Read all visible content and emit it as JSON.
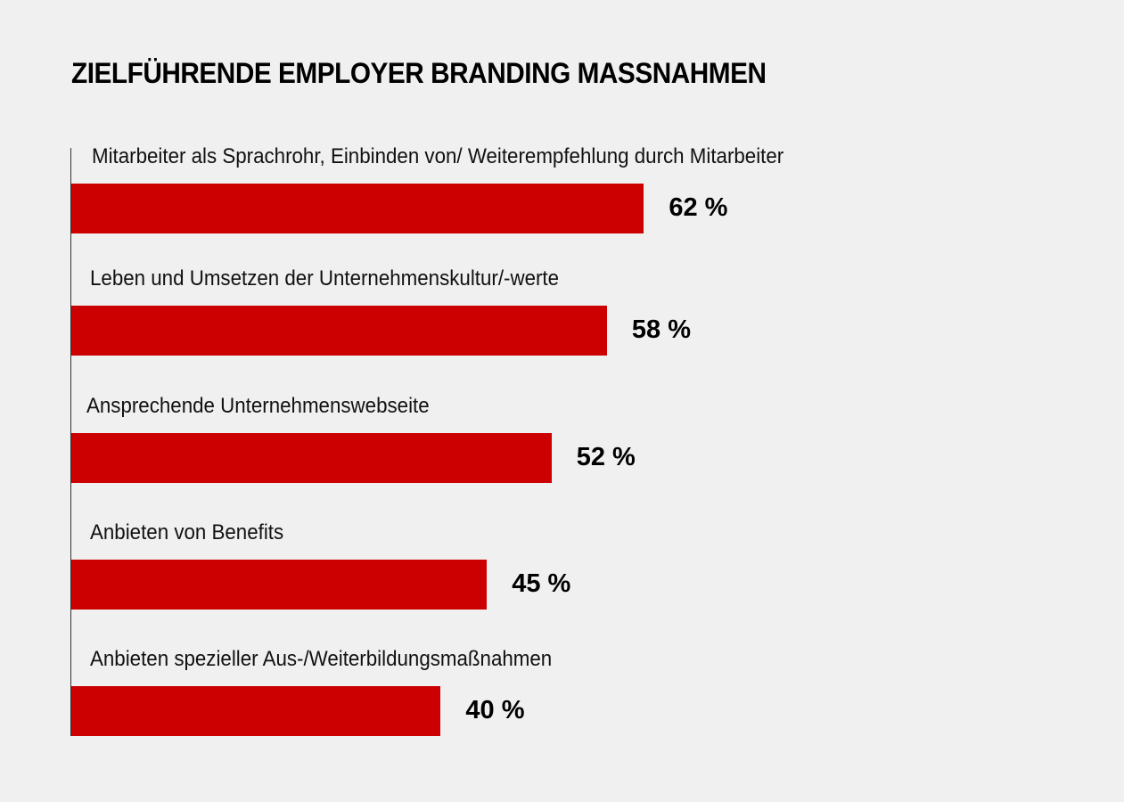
{
  "chart_data": {
    "type": "bar",
    "orientation": "horizontal",
    "title": "ZIELFÜHRENDE EMPLOYER BRANDING MASSNAHMEN",
    "xlabel": "",
    "ylabel": "",
    "categories": [
      "Mitarbeiter als Sprachrohr, Einbinden von/ Weiterempfehlung durch Mitarbeiter",
      "Leben und Umsetzen der Unternehmenskultur/-werte",
      "Ansprechende Unternehmenswebseite",
      "Anbieten von Benefits",
      "Anbieten spezieller Aus-/Weiterbildungsmaßnahmen"
    ],
    "values": [
      62,
      58,
      52,
      45,
      40
    ],
    "value_labels": [
      "62 %",
      "58 %",
      "52 %",
      "45 %",
      "40 %"
    ],
    "unit": "%",
    "xlim": [
      0,
      100
    ],
    "grid": false,
    "legend": "none",
    "bar_color": "#cc0000"
  }
}
